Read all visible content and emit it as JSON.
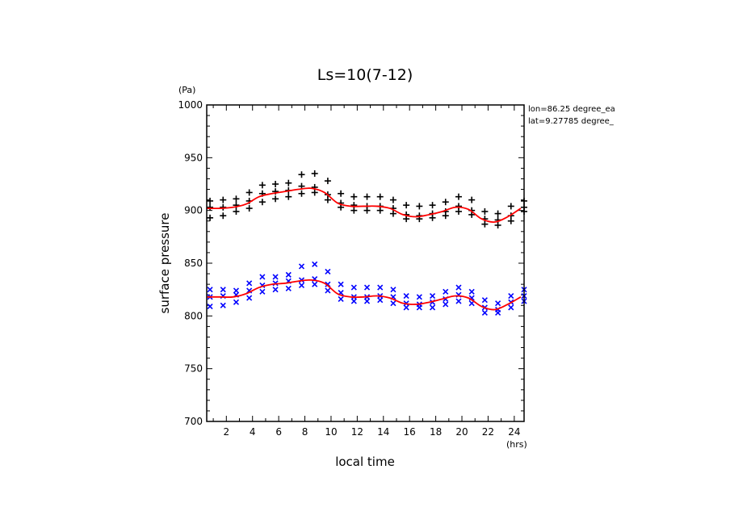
{
  "chart_data": {
    "type": "scatter",
    "title": "Ls=10(7-12)",
    "xlabel": "local time",
    "ylabel": "surface pressure",
    "x_unit": "(hrs)",
    "y_unit": "(Pa)",
    "xlim": [
      0.5,
      24.75
    ],
    "ylim": [
      700,
      1000
    ],
    "xticks": [
      2,
      4,
      6,
      8,
      10,
      12,
      14,
      16,
      18,
      20,
      22,
      24
    ],
    "yticks": [
      700,
      750,
      800,
      850,
      900,
      950,
      1000
    ],
    "annotations": [
      "lon=86.25 degree_ea",
      "lat=9.27785 degree_"
    ],
    "colors": {
      "black_markers": "#000000",
      "blue_markers": "#0000ff",
      "fit_line": "#ff0000",
      "axis": "#000000"
    },
    "series": [
      {
        "marker": "+",
        "color": "#000000",
        "x": [
          0.75,
          1.75,
          2.75,
          3.75,
          4.75,
          5.75,
          6.75,
          7.75,
          8.75,
          9.75,
          10.75,
          11.75,
          12.75,
          13.75,
          14.75,
          15.75,
          16.75,
          17.75,
          18.75,
          19.75,
          20.75,
          21.75,
          22.75,
          23.75,
          24.75
        ],
        "y": [
          [
            893,
            903,
            909
          ],
          [
            895,
            903,
            910
          ],
          [
            899,
            905,
            911
          ],
          [
            902,
            909,
            917
          ],
          [
            908,
            916,
            924
          ],
          [
            911,
            918,
            925
          ],
          [
            913,
            919,
            926
          ],
          [
            916,
            923,
            934
          ],
          [
            917,
            922,
            935
          ],
          [
            910,
            915,
            928
          ],
          [
            903,
            907,
            916
          ],
          [
            900,
            905,
            913
          ],
          [
            900,
            904,
            913
          ],
          [
            900,
            904,
            913
          ],
          [
            897,
            902,
            910
          ],
          [
            892,
            896,
            905
          ],
          [
            892,
            895,
            904
          ],
          [
            893,
            897,
            905
          ],
          [
            895,
            899,
            908
          ],
          [
            899,
            904,
            913
          ],
          [
            896,
            900,
            910
          ],
          [
            887,
            892,
            899
          ],
          [
            886,
            891,
            897
          ],
          [
            890,
            895,
            904
          ],
          [
            899,
            903,
            909
          ]
        ]
      },
      {
        "marker": "x",
        "color": "#0000ff",
        "x": [
          0.75,
          1.75,
          2.75,
          3.75,
          4.75,
          5.75,
          6.75,
          7.75,
          8.75,
          9.75,
          10.75,
          11.75,
          12.75,
          13.75,
          14.75,
          15.75,
          16.75,
          17.75,
          18.75,
          19.75,
          20.75,
          21.75,
          22.75,
          23.75,
          24.75
        ],
        "y": [
          [
            809,
            818,
            825
          ],
          [
            810,
            819,
            825
          ],
          [
            813,
            820,
            824
          ],
          [
            817,
            824,
            831
          ],
          [
            823,
            829,
            837
          ],
          [
            825,
            831,
            837
          ],
          [
            826,
            833,
            839
          ],
          [
            829,
            834,
            847
          ],
          [
            830,
            835,
            849
          ],
          [
            824,
            830,
            842
          ],
          [
            816,
            822,
            830
          ],
          [
            814,
            818,
            827
          ],
          [
            814,
            818,
            827
          ],
          [
            815,
            819,
            827
          ],
          [
            812,
            818,
            825
          ],
          [
            808,
            812,
            819
          ],
          [
            808,
            811,
            818
          ],
          [
            808,
            813,
            819
          ],
          [
            811,
            816,
            823
          ],
          [
            814,
            820,
            827
          ],
          [
            812,
            817,
            823
          ],
          [
            803,
            808,
            815
          ],
          [
            803,
            806,
            812
          ],
          [
            808,
            813,
            819
          ],
          [
            814,
            819,
            825
          ]
        ]
      },
      {
        "type": "line",
        "color": "#ff0000",
        "x": [
          0.5,
          1.5,
          2.5,
          3.5,
          4.5,
          5.5,
          6.5,
          7.5,
          8.5,
          9.5,
          10.5,
          11.5,
          12.5,
          13.5,
          14.5,
          15.5,
          16.5,
          17.5,
          18.5,
          19.5,
          20.5,
          21.5,
          22.5,
          23.5,
          24.5
        ],
        "y": [
          902,
          902,
          903,
          906,
          913,
          916,
          918,
          920,
          921,
          917,
          907,
          904,
          904,
          904,
          902,
          896,
          894,
          896,
          899,
          903,
          901,
          892,
          889,
          894,
          902
        ]
      },
      {
        "type": "line",
        "color": "#ff0000",
        "x": [
          0.5,
          1.5,
          2.5,
          3.5,
          4.5,
          5.5,
          6.5,
          7.5,
          8.5,
          9.5,
          10.5,
          11.5,
          12.5,
          13.5,
          14.5,
          15.5,
          16.5,
          17.5,
          18.5,
          19.5,
          20.5,
          21.5,
          22.5,
          23.5,
          24.5
        ],
        "y": [
          818,
          818,
          818,
          821,
          827,
          830,
          831,
          833,
          834,
          831,
          821,
          818,
          818,
          819,
          817,
          812,
          811,
          813,
          816,
          819,
          817,
          809,
          806,
          811,
          818
        ]
      }
    ]
  }
}
